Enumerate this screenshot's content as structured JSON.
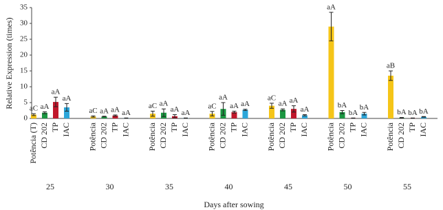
{
  "chart_data": {
    "type": "bar",
    "y_label": "Relative Expression (times)",
    "x_label": "Days after sowing",
    "categories": [
      "25",
      "30",
      "35",
      "40",
      "45",
      "50",
      "55"
    ],
    "series": [
      {
        "color": "#f5c518",
        "labels": [
          "Potência (T)",
          "Potência",
          "Potência",
          "Potência",
          "Potência",
          "Potência",
          "Potência"
        ],
        "values": [
          1.2,
          0.6,
          1.5,
          1.5,
          4.0,
          29.0,
          13.5
        ],
        "errors": [
          0.3,
          0.2,
          0.8,
          0.7,
          0.8,
          4.5,
          1.5
        ],
        "letters": [
          "aC",
          "aC",
          "aC",
          "aC",
          "aC",
          "aA",
          "aB"
        ]
      },
      {
        "color": "#1a9641",
        "labels": [
          "CD 202",
          "CD 202",
          "CD 202",
          "CD 202",
          "CD 202",
          "CD 202",
          "CD 202"
        ],
        "values": [
          1.8,
          0.6,
          1.8,
          3.0,
          2.7,
          2.0,
          0.2
        ],
        "errors": [
          0.3,
          0.1,
          1.2,
          2.0,
          0.3,
          0.5,
          0.1
        ],
        "letters": [
          "aA",
          "aA",
          "aA",
          "aA",
          "aA",
          "bA",
          "bA"
        ]
      },
      {
        "color": "#c0172b",
        "labels": [
          "TP",
          "TP",
          "TP",
          "TP",
          "TP",
          "TP",
          "TP"
        ],
        "values": [
          5.2,
          0.9,
          0.7,
          2.0,
          3.0,
          0.1,
          0.1
        ],
        "errors": [
          1.5,
          0.2,
          0.5,
          0.3,
          1.0,
          0.05,
          0.05
        ],
        "letters": [
          "aA",
          "aA",
          "aA",
          "aA",
          "aA",
          "bA",
          "bA"
        ]
      },
      {
        "color": "#2ca6d9",
        "labels": [
          "IAC",
          "IAC",
          "IAC",
          "IAC",
          "IAC",
          "IAC",
          "IAC"
        ],
        "values": [
          3.5,
          0.1,
          0.1,
          2.7,
          1.0,
          1.5,
          0.5
        ],
        "errors": [
          1.2,
          0.05,
          0.05,
          0.2,
          0.2,
          0.4,
          0.1
        ],
        "letters": [
          "aA",
          "aA",
          "aA",
          "aA",
          "aA",
          "bA",
          "bA"
        ]
      }
    ],
    "ylim": [
      0,
      35
    ],
    "yticks": [
      0,
      5,
      10,
      15,
      20,
      25,
      30,
      35
    ],
    "grid": false
  }
}
